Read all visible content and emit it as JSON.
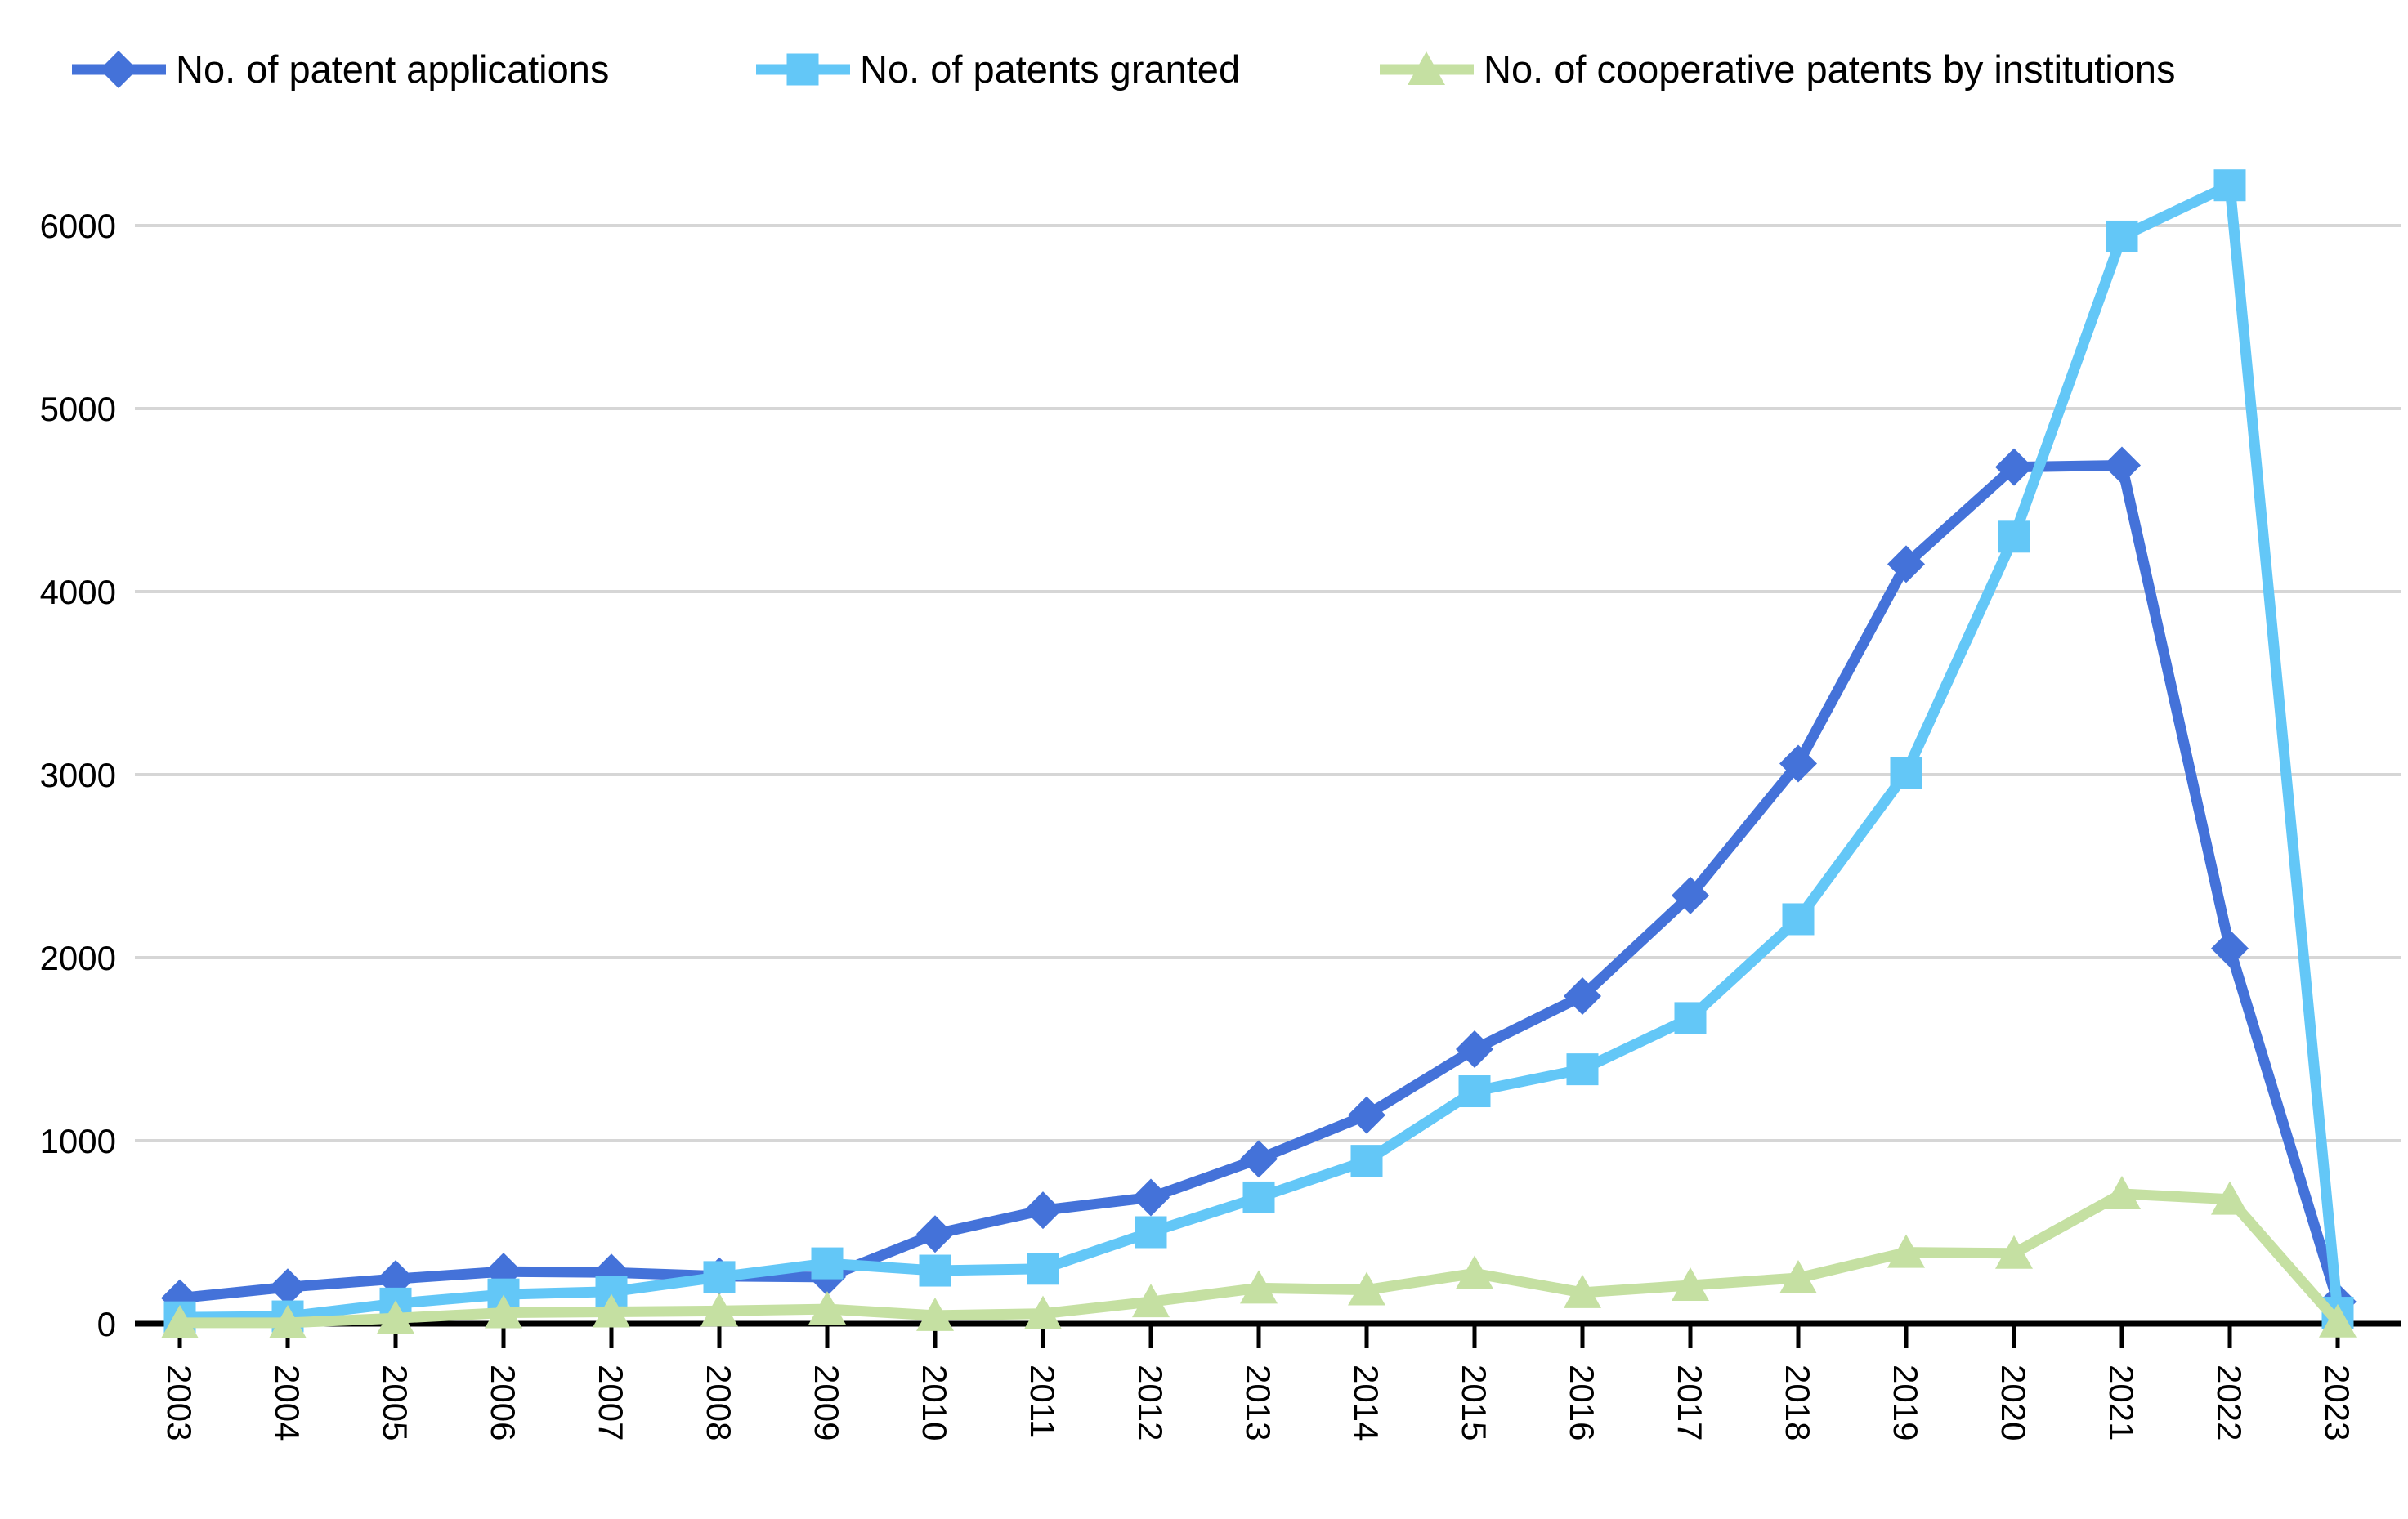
{
  "chart_data": {
    "type": "line",
    "title": "",
    "xlabel": "",
    "ylabel": "",
    "categories": [
      "2003",
      "2004",
      "2005",
      "2006",
      "2007",
      "2008",
      "2009",
      "2010",
      "2011",
      "2012",
      "2013",
      "2014",
      "2015",
      "2016",
      "2017",
      "2018",
      "2019",
      "2020",
      "2021",
      "2022",
      "2023"
    ],
    "yticks": [
      0,
      1000,
      2000,
      3000,
      4000,
      5000,
      6000
    ],
    "ylim": [
      0,
      6500
    ],
    "grid": true,
    "legend_position": "top",
    "x_label_rotation_deg": 90,
    "series": [
      {
        "id": "patent-applications",
        "name": "No. of patent applications",
        "marker": "diamond",
        "color": "#4472D9",
        "values": [
          140,
          200,
          245,
          285,
          280,
          260,
          255,
          490,
          620,
          690,
          900,
          1140,
          1500,
          1790,
          2340,
          3060,
          4150,
          4680,
          4690,
          2050,
          120
        ]
      },
      {
        "id": "patents-granted",
        "name": "No. of  patents granted",
        "marker": "square",
        "color": "#63C7F7",
        "values": [
          35,
          40,
          110,
          160,
          175,
          255,
          330,
          290,
          300,
          500,
          690,
          890,
          1270,
          1390,
          1670,
          2210,
          3010,
          4300,
          5940,
          6220,
          60
        ]
      },
      {
        "id": "cooperative-patents",
        "name": "No. of cooperative patents by institutions",
        "marker": "triangle",
        "color": "#C5E0A2",
        "values": [
          5,
          5,
          30,
          60,
          65,
          70,
          80,
          45,
          55,
          120,
          195,
          185,
          275,
          170,
          210,
          250,
          390,
          385,
          710,
          680,
          10
        ]
      }
    ]
  },
  "colors": {
    "background": "#FFFFFF",
    "gridline": "#D6D6D6",
    "axis": "#000000",
    "text": "#000000"
  }
}
